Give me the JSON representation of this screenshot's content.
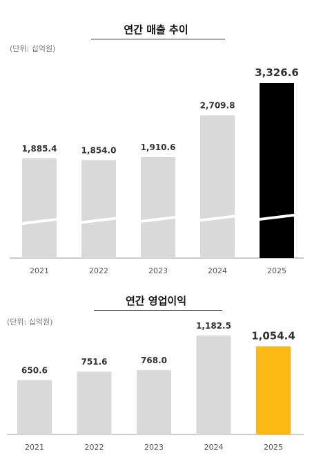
{
  "colors": {
    "bar_default": "#d9d9d9",
    "chart1_highlight": "#000000",
    "chart2_highlight": "#fdb913",
    "axis": "#999999",
    "label": "#333333"
  },
  "chart_data": [
    {
      "type": "bar",
      "title": "연간 매출 추이",
      "unit": "(단위: 십억원)",
      "categories": [
        "2021",
        "2022",
        "2023",
        "2024",
        "2025"
      ],
      "values": [
        1885.4,
        1854.0,
        1910.6,
        2709.8,
        3326.6
      ],
      "value_labels": [
        "1,885.4",
        "1,854.0",
        "1,910.6",
        "2,709.8",
        "3,326.6"
      ],
      "highlight_index": 4,
      "axis_break": true
    },
    {
      "type": "bar",
      "title": "연간 영업이익",
      "unit": "(단위: 십억원)",
      "categories": [
        "2021",
        "2022",
        "2023",
        "2024",
        "2025"
      ],
      "values": [
        650.6,
        751.6,
        768.0,
        1182.5,
        1054.4
      ],
      "value_labels": [
        "650.6",
        "751.6",
        "768.0",
        "1,182.5",
        "1,054.4"
      ],
      "highlight_index": 4,
      "axis_break": false
    }
  ]
}
